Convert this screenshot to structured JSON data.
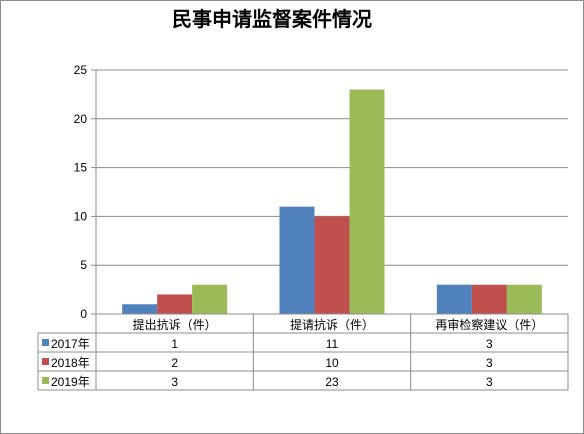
{
  "chart_data": {
    "type": "bar",
    "title": "民事申请监督案件情况",
    "categories": [
      "提出抗诉（件）",
      "提请抗诉（件）",
      "再审检察建议（件）"
    ],
    "series": [
      {
        "name": "2017年",
        "values": [
          1,
          11,
          3
        ],
        "color": "#4f81bd"
      },
      {
        "name": "2018年",
        "values": [
          2,
          10,
          3
        ],
        "color": "#c0504d"
      },
      {
        "name": "2019年",
        "values": [
          3,
          23,
          3
        ],
        "color": "#9bbb59"
      }
    ],
    "yticks": [
      0,
      5,
      10,
      15,
      20,
      25
    ],
    "ylim": [
      0,
      25
    ],
    "grid": true,
    "legend": "data-table-left",
    "data_table": true
  }
}
